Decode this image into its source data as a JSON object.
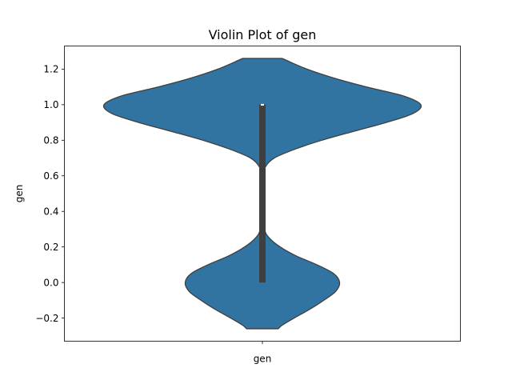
{
  "chart_data": {
    "type": "violin",
    "title": "Violin Plot of gen",
    "xlabel": "",
    "ylabel": "gen",
    "categories": [
      "gen"
    ],
    "ylim": [
      -0.33,
      1.33
    ],
    "yticks": [
      -0.2,
      0.0,
      0.2,
      0.4,
      0.6,
      0.8,
      1.0,
      1.2
    ],
    "ytick_labels": [
      "−0.2",
      "0.0",
      "0.2",
      "0.4",
      "0.6",
      "0.8",
      "1.0",
      "1.2"
    ],
    "grid": false,
    "legend": "none",
    "violin": {
      "range": [
        -0.26,
        1.26
      ],
      "density_profile": [
        [
          -0.26,
          0.16
        ],
        [
          -0.24,
          0.2
        ],
        [
          -0.2,
          0.32
        ],
        [
          -0.15,
          0.48
        ],
        [
          -0.1,
          0.62
        ],
        [
          -0.05,
          0.74
        ],
        [
          0.0,
          0.78
        ],
        [
          0.05,
          0.72
        ],
        [
          0.1,
          0.55
        ],
        [
          0.15,
          0.34
        ],
        [
          0.2,
          0.18
        ],
        [
          0.25,
          0.07
        ],
        [
          0.3,
          0.02
        ],
        [
          0.4,
          0.0
        ],
        [
          0.5,
          0.0
        ],
        [
          0.6,
          0.005
        ],
        [
          0.65,
          0.03
        ],
        [
          0.7,
          0.12
        ],
        [
          0.75,
          0.33
        ],
        [
          0.8,
          0.6
        ],
        [
          0.85,
          0.92
        ],
        [
          0.9,
          1.25
        ],
        [
          0.95,
          1.52
        ],
        [
          1.0,
          1.6
        ],
        [
          1.05,
          1.42
        ],
        [
          1.1,
          1.05
        ],
        [
          1.15,
          0.72
        ],
        [
          1.2,
          0.45
        ],
        [
          1.25,
          0.24
        ],
        [
          1.26,
          0.2
        ]
      ],
      "box": {
        "q1": 0.0,
        "median": 1.0,
        "q3": 1.0,
        "whisker_low": 0.0,
        "whisker_high": 1.0
      }
    },
    "colors": {
      "fill": "#3274a1",
      "edge": "#3f3f3f",
      "box": "#3f3f3f",
      "median": "#ffffff"
    }
  }
}
